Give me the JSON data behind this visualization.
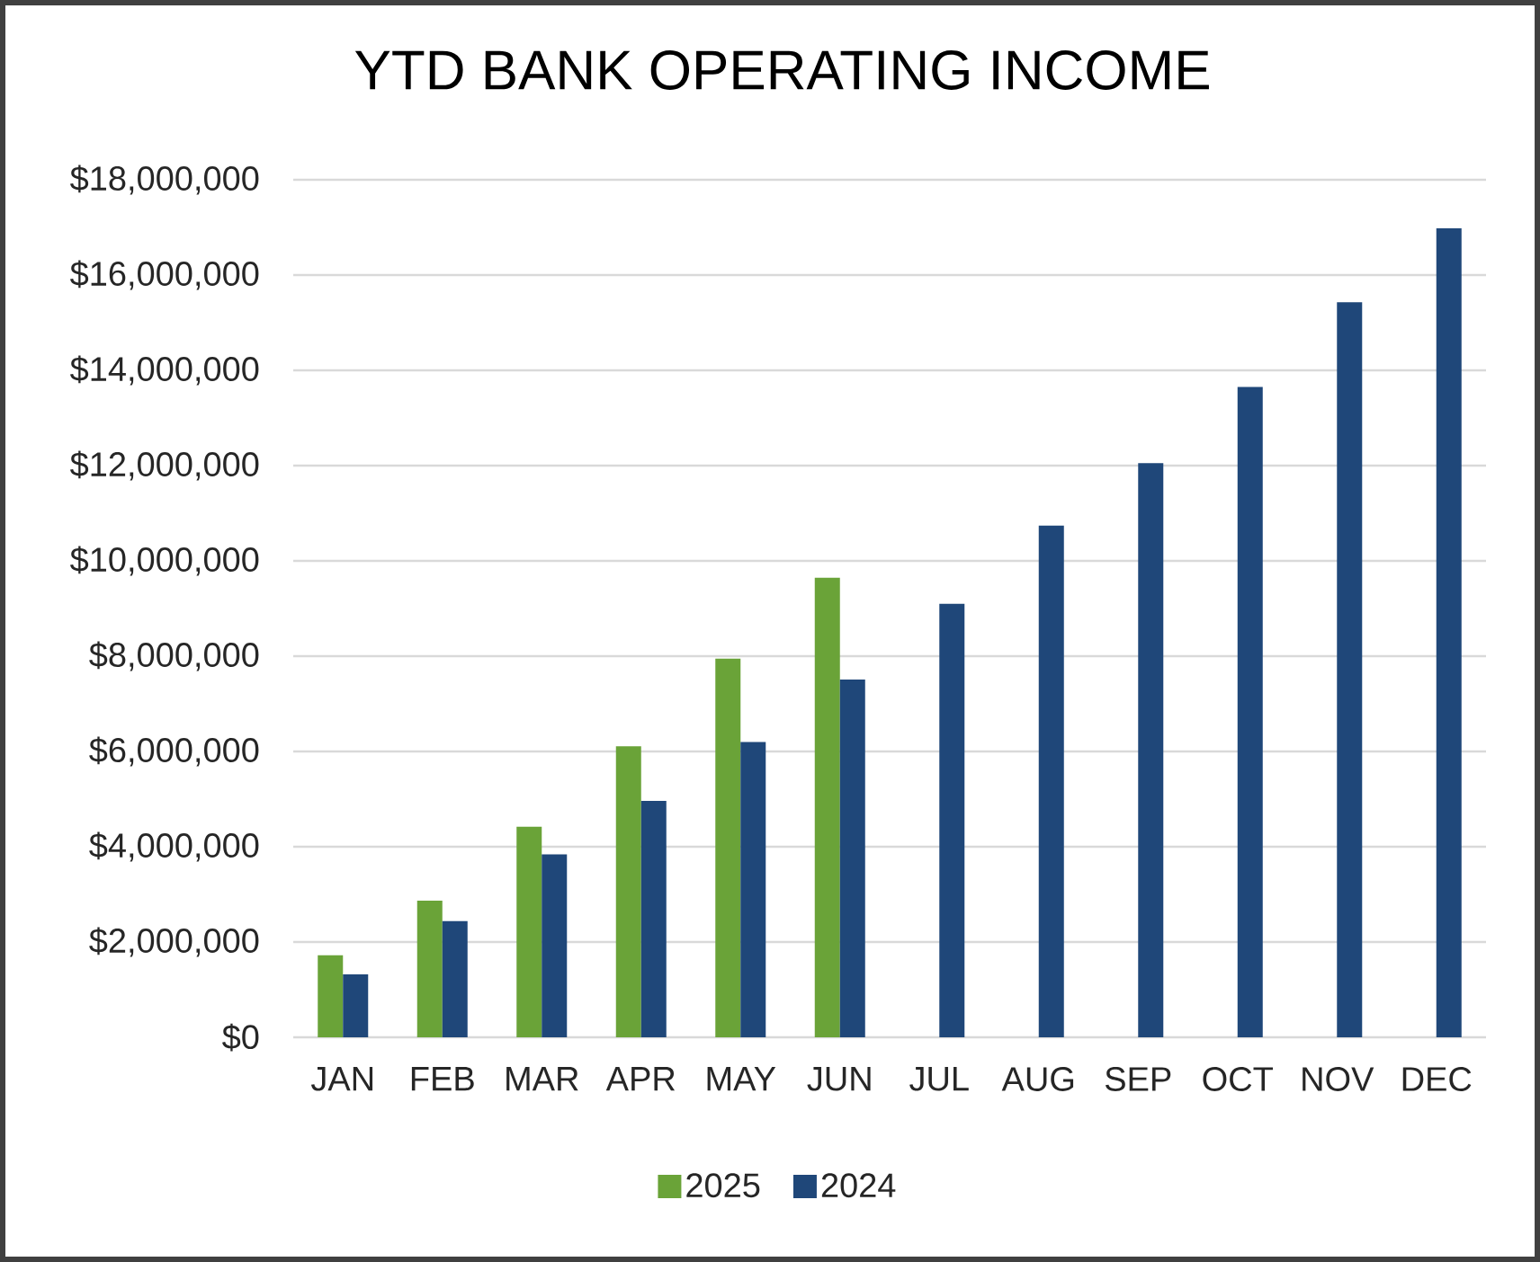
{
  "chart_data": {
    "type": "bar",
    "title": "YTD BANK OPERATING INCOME",
    "categories": [
      "JAN",
      "FEB",
      "MAR",
      "APR",
      "MAY",
      "JUN",
      "JUL",
      "AUG",
      "SEP",
      "OCT",
      "NOV",
      "DEC"
    ],
    "series": [
      {
        "name": "2025",
        "color": "#6aa338",
        "values": [
          1720000,
          2870000,
          4420000,
          6110000,
          7950000,
          9650000,
          null,
          null,
          null,
          null,
          null,
          null
        ]
      },
      {
        "name": "2024",
        "color": "#1f4779",
        "values": [
          1320000,
          2440000,
          3840000,
          4960000,
          6200000,
          7510000,
          9100000,
          10740000,
          12050000,
          13650000,
          15430000,
          16980000
        ]
      }
    ],
    "ylim": [
      0,
      18000000
    ],
    "yticks": [
      {
        "value": 0,
        "label": "$0"
      },
      {
        "value": 2000000,
        "label": "$2,000,000"
      },
      {
        "value": 4000000,
        "label": "$4,000,000"
      },
      {
        "value": 6000000,
        "label": "$6,000,000"
      },
      {
        "value": 8000000,
        "label": "$8,000,000"
      },
      {
        "value": 10000000,
        "label": "$10,000,000"
      },
      {
        "value": 12000000,
        "label": "$12,000,000"
      },
      {
        "value": 14000000,
        "label": "$14,000,000"
      },
      {
        "value": 16000000,
        "label": "$16,000,000"
      },
      {
        "value": 18000000,
        "label": "$18,000,000"
      }
    ],
    "grid": "y",
    "legend": "bottom"
  }
}
